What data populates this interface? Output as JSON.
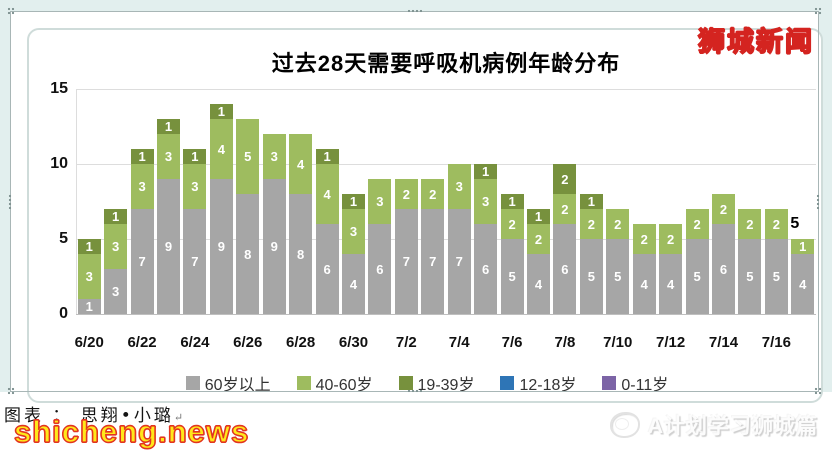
{
  "watermarks": {
    "site_logo": "狮城新闻",
    "site_url": "shicheng.news",
    "byline": "图表 ： 思翔•小璐",
    "paragraph_mark": "↵",
    "footer_brand": "A计划学习狮城篇"
  },
  "chart_data": {
    "type": "bar",
    "stacked": true,
    "title": "过去28天需要呼吸机病例年龄分布",
    "n_bars": 28,
    "x_tick_labels": [
      "6/20",
      "6/22",
      "6/24",
      "6/26",
      "6/28",
      "6/30",
      "7/2",
      "7/4",
      "7/6",
      "7/8",
      "7/10",
      "7/12",
      "7/14",
      "7/16"
    ],
    "y_ticks": [
      0,
      5,
      10,
      15
    ],
    "ylim": [
      0,
      15
    ],
    "grid": true,
    "legend_position": "bottom",
    "series": [
      {
        "name": "60岁以上",
        "color": "#a6a6a6",
        "values": [
          1,
          3,
          7,
          9,
          7,
          9,
          8,
          9,
          8,
          6,
          4,
          6,
          7,
          7,
          7,
          6,
          5,
          4,
          6,
          5,
          5,
          4,
          4,
          5,
          6,
          5,
          5,
          4
        ]
      },
      {
        "name": "40-60岁",
        "color": "#9ebc5f",
        "values": [
          3,
          3,
          3,
          3,
          3,
          4,
          5,
          3,
          4,
          4,
          3,
          3,
          2,
          2,
          3,
          3,
          2,
          2,
          2,
          2,
          2,
          2,
          2,
          2,
          2,
          2,
          2,
          1
        ]
      },
      {
        "name": "19-39岁",
        "color": "#77913d",
        "values": [
          1,
          1,
          1,
          1,
          1,
          1,
          0,
          0,
          0,
          1,
          1,
          0,
          0,
          0,
          0,
          1,
          1,
          1,
          2,
          1,
          0,
          0,
          0,
          0,
          0,
          0,
          0,
          0
        ]
      },
      {
        "name": "12-18岁",
        "color": "#2e75b6",
        "values": [
          0,
          0,
          0,
          0,
          0,
          0,
          0,
          0,
          0,
          0,
          0,
          0,
          0,
          0,
          0,
          0,
          0,
          0,
          0,
          0,
          0,
          0,
          0,
          0,
          0,
          0,
          0,
          0
        ]
      },
      {
        "name": "0-11岁",
        "color": "#7c64a6",
        "values": [
          0,
          0,
          0,
          0,
          0,
          0,
          0,
          0,
          0,
          0,
          0,
          0,
          0,
          0,
          0,
          0,
          0,
          0,
          0,
          0,
          0,
          0,
          0,
          0,
          0,
          0,
          0,
          0
        ]
      }
    ],
    "annotation": {
      "text": "5",
      "bar_index": 27
    }
  }
}
